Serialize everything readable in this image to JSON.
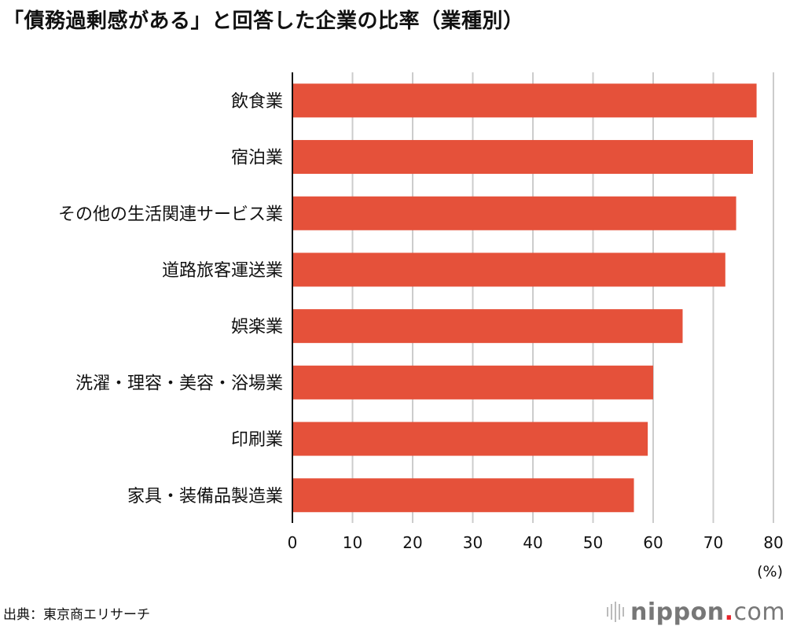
{
  "chart_data": {
    "type": "bar",
    "orientation": "horizontal",
    "title": "「債務過剰感がある」と回答した企業の比率（業種別）",
    "categories": [
      "飲食業",
      "宿泊業",
      "その他の生活関連サービス業",
      "道路旅客運送業",
      "娯楽業",
      "洗濯・理容・美容・浴場業",
      "印刷業",
      "家具・装備品製造業"
    ],
    "values": [
      77.2,
      76.6,
      73.8,
      72.0,
      64.9,
      60.0,
      59.1,
      56.8
    ],
    "xlabel": "(%)",
    "ylabel": "",
    "xlim": [
      0,
      80
    ],
    "xticks": [
      0,
      10,
      20,
      30,
      40,
      50,
      60,
      70,
      80
    ],
    "grid": true,
    "bar_color": "#e5513a",
    "grid_color": "#cccccc"
  },
  "source": "出典：東京商エリサーチ",
  "logo": {
    "name": "nippon",
    "dot": ".",
    "tld": "com"
  }
}
